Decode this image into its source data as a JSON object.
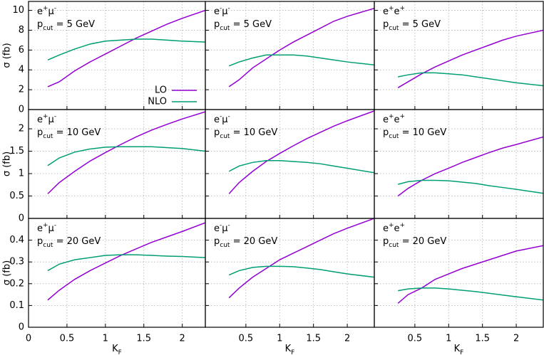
{
  "chart_data": [
    {
      "type": "line",
      "label": [
        {
          "text": "e"
        },
        {
          "text": "+",
          "sup": true
        },
        {
          "text": "μ"
        },
        {
          "text": "-",
          "sup": true
        }
      ],
      "cut": [
        {
          "text": "p"
        },
        {
          "text": "cut",
          "sub": true
        },
        {
          "text": " = 5 GeV"
        }
      ],
      "ylabel": "σ (fb)",
      "legend": "bottom-right",
      "x": [
        0.25,
        0.4,
        0.6,
        0.8,
        1.0,
        1.2,
        1.4,
        1.6,
        1.8,
        2.0,
        2.3
      ],
      "series": [
        {
          "name": "LO",
          "color": "#9400d3",
          "values": [
            2.3,
            2.8,
            3.9,
            4.8,
            5.6,
            6.4,
            7.2,
            7.9,
            8.6,
            9.2,
            10.0
          ]
        },
        {
          "name": "NLO",
          "color": "#009e73",
          "values": [
            5.0,
            5.5,
            6.1,
            6.6,
            6.9,
            7.0,
            7.1,
            7.1,
            7.0,
            6.9,
            6.8
          ]
        }
      ],
      "xlim": [
        0,
        2.3
      ],
      "ylim": [
        0,
        10.9
      ],
      "xticks": [
        0.5,
        1,
        1.5,
        2
      ],
      "yticks": [
        0,
        2,
        4,
        6,
        8,
        10
      ],
      "show_xtick_labels": false,
      "show_ytick_labels": true,
      "grid": true
    },
    {
      "type": "line",
      "label": [
        {
          "text": "e"
        },
        {
          "text": "-",
          "sup": true
        },
        {
          "text": "μ"
        },
        {
          "text": "-",
          "sup": true
        }
      ],
      "cut": [
        {
          "text": "p"
        },
        {
          "text": "cut",
          "sub": true
        },
        {
          "text": " = 5 GeV"
        }
      ],
      "x": [
        0.25,
        0.4,
        0.6,
        0.8,
        1.0,
        1.2,
        1.4,
        1.6,
        1.8,
        2.0,
        2.4
      ],
      "series": [
        {
          "color": "#9400d3",
          "values": [
            2.3,
            3.0,
            4.2,
            5.1,
            6.0,
            6.8,
            7.5,
            8.2,
            8.9,
            9.4,
            10.2
          ]
        },
        {
          "color": "#009e73",
          "values": [
            4.4,
            4.8,
            5.2,
            5.5,
            5.5,
            5.5,
            5.4,
            5.2,
            5.0,
            4.8,
            4.5
          ]
        }
      ],
      "xlim": [
        -0.1,
        2.4
      ],
      "ylim": [
        0,
        10.9
      ],
      "xticks": [
        0.5,
        1,
        1.5,
        2
      ],
      "yticks": [
        2,
        4,
        6,
        8,
        10
      ],
      "show_xtick_labels": false,
      "show_ytick_labels": false,
      "grid": true
    },
    {
      "type": "line",
      "label": [
        {
          "text": "e"
        },
        {
          "text": "+",
          "sup": true
        },
        {
          "text": "e"
        },
        {
          "text": "+",
          "sup": true
        }
      ],
      "cut": [
        {
          "text": "p"
        },
        {
          "text": "cut",
          "sub": true
        },
        {
          "text": " = 5 GeV"
        }
      ],
      "x": [
        0.25,
        0.4,
        0.6,
        0.8,
        1.0,
        1.2,
        1.4,
        1.6,
        1.8,
        2.0,
        2.4
      ],
      "series": [
        {
          "color": "#9400d3",
          "values": [
            2.2,
            2.8,
            3.6,
            4.3,
            4.9,
            5.5,
            6.0,
            6.5,
            7.0,
            7.4,
            8.0
          ]
        },
        {
          "color": "#009e73",
          "values": [
            3.3,
            3.5,
            3.7,
            3.7,
            3.6,
            3.5,
            3.3,
            3.1,
            2.9,
            2.7,
            2.4
          ]
        }
      ],
      "xlim": [
        -0.1,
        2.4
      ],
      "ylim": [
        0,
        10.9
      ],
      "xticks": [
        0.5,
        1,
        1.5,
        2
      ],
      "yticks": [
        2,
        4,
        6,
        8,
        10
      ],
      "show_xtick_labels": false,
      "show_ytick_labels": false,
      "grid": true
    },
    {
      "type": "line",
      "label": [
        {
          "text": "e"
        },
        {
          "text": "+",
          "sup": true
        },
        {
          "text": "μ"
        },
        {
          "text": "-",
          "sup": true
        }
      ],
      "cut": [
        {
          "text": "p"
        },
        {
          "text": "cut",
          "sub": true
        },
        {
          "text": " = 10 GeV"
        }
      ],
      "ylabel": "σ (fb)",
      "x": [
        0.25,
        0.4,
        0.6,
        0.8,
        1.0,
        1.2,
        1.4,
        1.6,
        1.8,
        2.0,
        2.3
      ],
      "series": [
        {
          "color": "#9400d3",
          "values": [
            0.55,
            0.8,
            1.05,
            1.28,
            1.47,
            1.65,
            1.82,
            1.97,
            2.1,
            2.22,
            2.38
          ]
        },
        {
          "color": "#009e73",
          "values": [
            1.18,
            1.35,
            1.48,
            1.55,
            1.59,
            1.6,
            1.6,
            1.6,
            1.58,
            1.56,
            1.5
          ]
        }
      ],
      "xlim": [
        0,
        2.3
      ],
      "ylim": [
        0,
        2.43
      ],
      "xticks": [
        0.5,
        1,
        1.5,
        2
      ],
      "yticks": [
        0,
        0.5,
        1,
        1.5,
        2
      ],
      "show_xtick_labels": false,
      "show_ytick_labels": true,
      "grid": true
    },
    {
      "type": "line",
      "label": [
        {
          "text": "e"
        },
        {
          "text": "-",
          "sup": true
        },
        {
          "text": "μ"
        },
        {
          "text": "-",
          "sup": true
        }
      ],
      "cut": [
        {
          "text": "p"
        },
        {
          "text": "cut",
          "sub": true
        },
        {
          "text": " = 10 GeV"
        }
      ],
      "x": [
        0.25,
        0.4,
        0.6,
        0.8,
        1.0,
        1.2,
        1.4,
        1.6,
        1.8,
        2.0,
        2.4
      ],
      "series": [
        {
          "color": "#9400d3",
          "values": [
            0.55,
            0.8,
            1.05,
            1.27,
            1.45,
            1.62,
            1.78,
            1.92,
            2.06,
            2.18,
            2.4
          ]
        },
        {
          "color": "#009e73",
          "values": [
            1.05,
            1.17,
            1.25,
            1.29,
            1.29,
            1.27,
            1.25,
            1.22,
            1.17,
            1.12,
            1.02
          ]
        }
      ],
      "xlim": [
        -0.1,
        2.4
      ],
      "ylim": [
        0,
        2.43
      ],
      "xticks": [
        0.5,
        1,
        1.5,
        2
      ],
      "yticks": [
        0.5,
        1,
        1.5,
        2
      ],
      "show_xtick_labels": false,
      "show_ytick_labels": false,
      "grid": true
    },
    {
      "type": "line",
      "label": [
        {
          "text": "e"
        },
        {
          "text": "+",
          "sup": true
        },
        {
          "text": "e"
        },
        {
          "text": "+",
          "sup": true
        }
      ],
      "cut": [
        {
          "text": "p"
        },
        {
          "text": "cut",
          "sub": true
        },
        {
          "text": " = 10 GeV"
        }
      ],
      "x": [
        0.25,
        0.4,
        0.6,
        0.8,
        1.0,
        1.2,
        1.4,
        1.6,
        1.8,
        2.0,
        2.4
      ],
      "series": [
        {
          "color": "#9400d3",
          "values": [
            0.5,
            0.67,
            0.85,
            1.0,
            1.12,
            1.25,
            1.36,
            1.47,
            1.57,
            1.65,
            1.82
          ]
        },
        {
          "color": "#009e73",
          "values": [
            0.76,
            0.82,
            0.85,
            0.85,
            0.84,
            0.81,
            0.78,
            0.73,
            0.69,
            0.65,
            0.56
          ]
        }
      ],
      "xlim": [
        -0.1,
        2.4
      ],
      "ylim": [
        0,
        2.43
      ],
      "xticks": [
        0.5,
        1,
        1.5,
        2
      ],
      "yticks": [
        0.5,
        1,
        1.5,
        2
      ],
      "show_xtick_labels": false,
      "show_ytick_labels": false,
      "grid": true
    },
    {
      "type": "line",
      "label": [
        {
          "text": "e"
        },
        {
          "text": "+",
          "sup": true
        },
        {
          "text": "μ"
        },
        {
          "text": "-",
          "sup": true
        }
      ],
      "cut": [
        {
          "text": "p"
        },
        {
          "text": "cut",
          "sub": true
        },
        {
          "text": " = 20 GeV"
        }
      ],
      "ylabel": "σ (fb)",
      "xlabel": [
        {
          "text": "K"
        },
        {
          "text": "F",
          "sub": true
        }
      ],
      "x": [
        0.25,
        0.4,
        0.6,
        0.8,
        1.0,
        1.2,
        1.4,
        1.6,
        1.8,
        2.0,
        2.3
      ],
      "series": [
        {
          "color": "#9400d3",
          "values": [
            0.125,
            0.17,
            0.22,
            0.26,
            0.295,
            0.33,
            0.36,
            0.39,
            0.415,
            0.44,
            0.48
          ]
        },
        {
          "color": "#009e73",
          "values": [
            0.26,
            0.29,
            0.31,
            0.32,
            0.33,
            0.333,
            0.333,
            0.33,
            0.327,
            0.325,
            0.32
          ]
        }
      ],
      "xlim": [
        0,
        2.3
      ],
      "ylim": [
        0,
        0.5
      ],
      "xticks": [
        0,
        0.5,
        1,
        1.5,
        2
      ],
      "yticks": [
        0,
        0.1,
        0.2,
        0.3,
        0.4
      ],
      "show_xtick_labels": true,
      "show_ytick_labels": true,
      "grid": true
    },
    {
      "type": "line",
      "label": [
        {
          "text": "e"
        },
        {
          "text": "-",
          "sup": true
        },
        {
          "text": "μ"
        },
        {
          "text": "-",
          "sup": true
        }
      ],
      "cut": [
        {
          "text": "p"
        },
        {
          "text": "cut",
          "sub": true
        },
        {
          "text": " = 20 GeV"
        }
      ],
      "xlabel": [
        {
          "text": "K"
        },
        {
          "text": "F",
          "sub": true
        }
      ],
      "x": [
        0.25,
        0.4,
        0.6,
        0.8,
        1.0,
        1.2,
        1.4,
        1.6,
        1.8,
        2.0,
        2.4
      ],
      "series": [
        {
          "color": "#9400d3",
          "values": [
            0.135,
            0.18,
            0.23,
            0.27,
            0.31,
            0.34,
            0.37,
            0.4,
            0.43,
            0.455,
            0.5
          ]
        },
        {
          "color": "#009e73",
          "values": [
            0.24,
            0.26,
            0.275,
            0.28,
            0.28,
            0.278,
            0.272,
            0.265,
            0.255,
            0.245,
            0.23
          ]
        }
      ],
      "xlim": [
        -0.1,
        2.4
      ],
      "ylim": [
        0,
        0.5
      ],
      "xticks": [
        0.5,
        1,
        1.5,
        2
      ],
      "yticks": [
        0.1,
        0.2,
        0.3,
        0.4
      ],
      "show_xtick_labels": true,
      "show_ytick_labels": false,
      "grid": true
    },
    {
      "type": "line",
      "label": [
        {
          "text": "e"
        },
        {
          "text": "+",
          "sup": true
        },
        {
          "text": "e"
        },
        {
          "text": "+",
          "sup": true
        }
      ],
      "cut": [
        {
          "text": "p"
        },
        {
          "text": "cut",
          "sub": true
        },
        {
          "text": " = 20 GeV"
        }
      ],
      "xlabel": [
        {
          "text": "K"
        },
        {
          "text": "F",
          "sub": true
        }
      ],
      "x": [
        0.25,
        0.4,
        0.6,
        0.8,
        1.0,
        1.2,
        1.4,
        1.6,
        1.8,
        2.0,
        2.4
      ],
      "series": [
        {
          "color": "#9400d3",
          "values": [
            0.11,
            0.15,
            0.18,
            0.22,
            0.245,
            0.27,
            0.29,
            0.31,
            0.33,
            0.35,
            0.375
          ]
        },
        {
          "color": "#009e73",
          "values": [
            0.168,
            0.176,
            0.18,
            0.18,
            0.176,
            0.17,
            0.164,
            0.156,
            0.148,
            0.14,
            0.125
          ]
        }
      ],
      "xlim": [
        -0.1,
        2.4
      ],
      "ylim": [
        0,
        0.5
      ],
      "xticks": [
        0.5,
        1,
        1.5,
        2
      ],
      "yticks": [
        0.1,
        0.2,
        0.3,
        0.4
      ],
      "show_xtick_labels": true,
      "show_ytick_labels": false,
      "grid": true
    }
  ]
}
